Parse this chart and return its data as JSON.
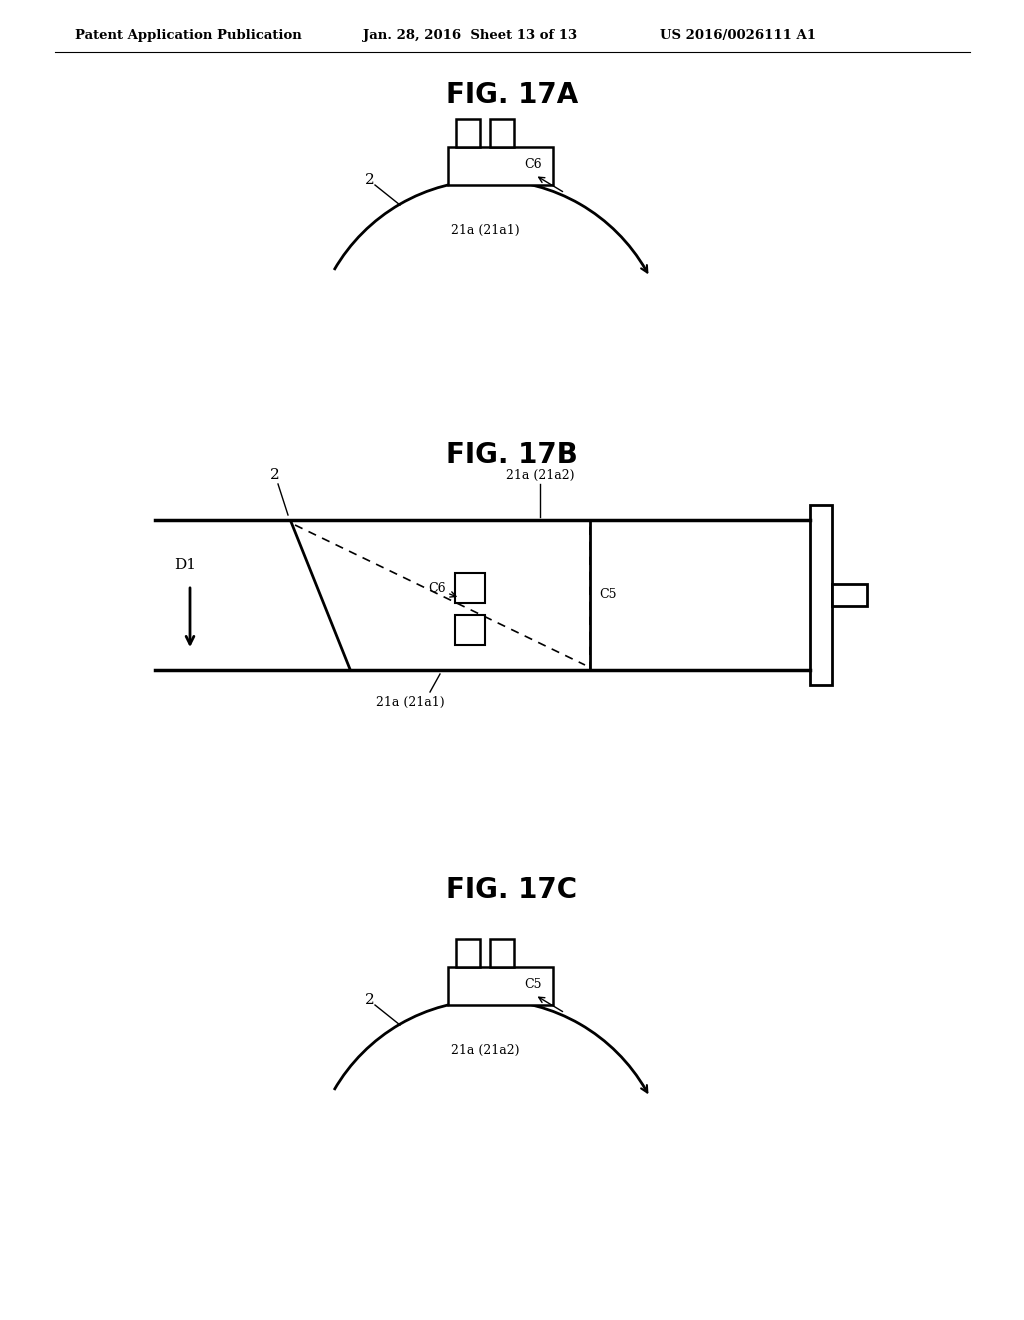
{
  "bg_color": "#ffffff",
  "header_left": "Patent Application Publication",
  "header_mid": "Jan. 28, 2016  Sheet 13 of 13",
  "header_right": "US 2016/0026111 A1",
  "fig17A_title": "FIG. 17A",
  "fig17B_title": "FIG. 17B",
  "fig17C_title": "FIG. 17C"
}
